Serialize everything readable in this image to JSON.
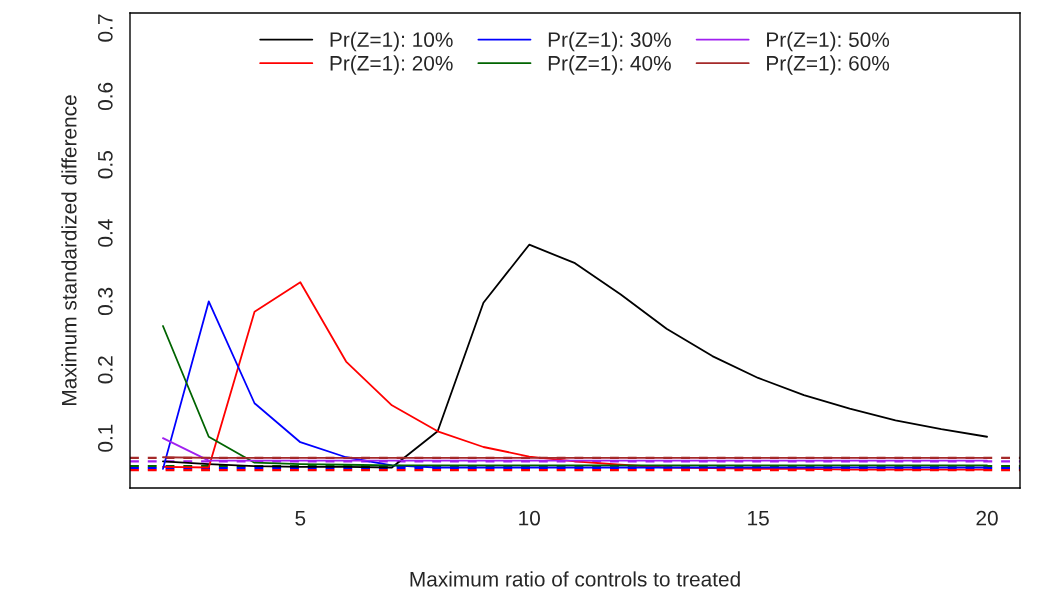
{
  "chart_data": {
    "type": "line",
    "xlabel": "Maximum ratio of controls to treated",
    "ylabel": "Maximum standardized difference",
    "x": [
      2,
      3,
      4,
      5,
      6,
      7,
      8,
      9,
      10,
      11,
      12,
      13,
      14,
      15,
      16,
      17,
      18,
      19,
      20
    ],
    "series": [
      {
        "name": "Pr(Z=1): 10%",
        "color": "#000000",
        "values": [
          0.066,
          0.062,
          0.059,
          0.058,
          0.058,
          0.057,
          0.11,
          0.298,
          0.383,
          0.356,
          0.31,
          0.26,
          0.22,
          0.188,
          0.163,
          0.143,
          0.126,
          0.113,
          0.102
        ]
      },
      {
        "name": "Pr(Z=1): 20%",
        "color": "#ff0000",
        "values": [
          0.058,
          0.057,
          0.285,
          0.328,
          0.212,
          0.148,
          0.11,
          0.087,
          0.073,
          0.066,
          0.061,
          0.057,
          0.056,
          0.055,
          0.055,
          0.054,
          0.054,
          0.054,
          0.054
        ]
      },
      {
        "name": "Pr(Z=1): 30%",
        "color": "#0000ff",
        "values": [
          0.055,
          0.3,
          0.151,
          0.094,
          0.072,
          0.06,
          0.057,
          0.057,
          0.057,
          0.057,
          0.057,
          0.057,
          0.057,
          0.057,
          0.057,
          0.057,
          0.057,
          0.057,
          0.057
        ]
      },
      {
        "name": "Pr(Z=1): 40%",
        "color": "#006400",
        "values": [
          0.264,
          0.102,
          0.064,
          0.062,
          0.061,
          0.06,
          0.06,
          0.06,
          0.06,
          0.06,
          0.06,
          0.06,
          0.06,
          0.06,
          0.06,
          0.06,
          0.06,
          0.06,
          0.06
        ]
      },
      {
        "name": "Pr(Z=1): 50%",
        "color": "#a020f0",
        "values": [
          0.1,
          0.067,
          0.067,
          0.067,
          0.067,
          0.067,
          0.067,
          0.067,
          0.067,
          0.067,
          0.067,
          0.067,
          0.067,
          0.067,
          0.067,
          0.067,
          0.067,
          0.067,
          0.067
        ]
      },
      {
        "name": "Pr(Z=1): 60%",
        "color": "#a52a2a",
        "values": [
          0.072,
          0.071,
          0.071,
          0.071,
          0.071,
          0.071,
          0.071,
          0.071,
          0.071,
          0.071,
          0.071,
          0.071,
          0.071,
          0.071,
          0.071,
          0.071,
          0.071,
          0.071,
          0.071
        ]
      }
    ],
    "ref_lines": [
      {
        "axis": "y",
        "value": 0.071,
        "color": "#a52a2a",
        "line_style": "dashed"
      },
      {
        "axis": "y",
        "value": 0.066,
        "color": "#a020f0",
        "line_style": "dashed"
      },
      {
        "axis": "y",
        "value": 0.059,
        "color": "#006400",
        "line_style": "dashed"
      },
      {
        "axis": "y",
        "value": 0.056,
        "color": "#0000ff",
        "line_style": "dashed"
      },
      {
        "axis": "y",
        "value": 0.053,
        "color": "#ff0000",
        "line_style": "dashed"
      }
    ],
    "xlim": [
      1.28,
      20.72
    ],
    "ylim": [
      0.027,
      0.722
    ],
    "xticks": [
      5,
      10,
      15,
      20
    ],
    "yticks": [
      0.1,
      0.2,
      0.3,
      0.4,
      0.5,
      0.6,
      0.7
    ],
    "grid": false,
    "legend": "top",
    "line_style": "solid",
    "marker": "none"
  }
}
